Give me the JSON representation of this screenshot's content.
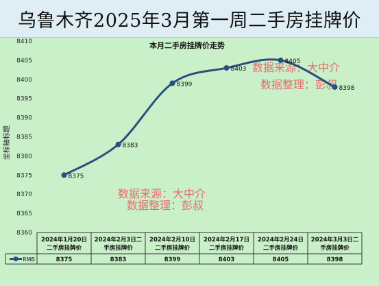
{
  "banner": {
    "title": "乌鲁木齐2025年3月第一周二手房挂牌价"
  },
  "chart_data": {
    "type": "line",
    "title": "本月二手房挂牌价走势",
    "ylabel": "坐标轴标题",
    "ylim": [
      8360,
      8410
    ],
    "yticks": [
      8360,
      8365,
      8370,
      8375,
      8380,
      8385,
      8390,
      8395,
      8400,
      8405,
      8410
    ],
    "categories": [
      [
        "2024年1月20日",
        "二手房挂牌价"
      ],
      [
        "2024年2月3日二",
        "手房挂牌价"
      ],
      [
        "2024年2月10日",
        "二手房挂牌价"
      ],
      [
        "2024年2月17日",
        "二手房挂牌价"
      ],
      [
        "2024年2月24日",
        "二手房挂牌价"
      ],
      [
        "2024年3月3日二",
        "手房挂牌价"
      ]
    ],
    "series": [
      {
        "name": "RMB",
        "values": [
          8375,
          8383,
          8399,
          8403,
          8405,
          8398
        ],
        "color": "#2a4e80"
      }
    ],
    "grid": false,
    "legend": "data-table"
  },
  "watermarks": [
    {
      "line1": "数据来源：大中介",
      "line2": "数据整理：彭叔"
    },
    {
      "line1": "数据来源：大中介",
      "line2": "数据整理：彭叔"
    }
  ]
}
